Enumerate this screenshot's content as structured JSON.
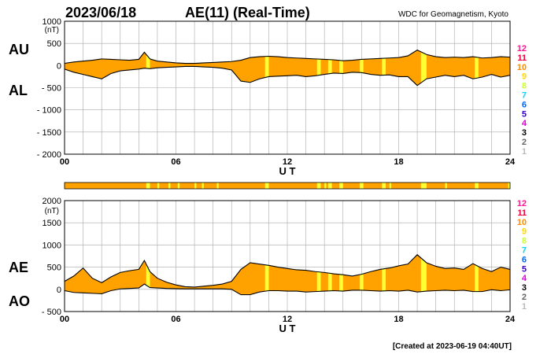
{
  "header": {
    "date": "2023/06/18",
    "title": "AE(11) (Real-Time)",
    "source": "WDC for Geomagnetism, Kyoto"
  },
  "footer": {
    "created": "[Created at 2023-06-19 04:40UT]"
  },
  "colors": {
    "fill": "#FFA200",
    "highlight": "#FFFF33",
    "grid": "#a8a8a8",
    "line": "#000000"
  },
  "station_scale": [
    {
      "label": "12",
      "color": "#ff1493"
    },
    {
      "label": "11",
      "color": "#e8003a"
    },
    {
      "label": "10",
      "color": "#ff8c00"
    },
    {
      "label": "9",
      "color": "#ffd700"
    },
    {
      "label": "8",
      "color": "#ccff33"
    },
    {
      "label": "7",
      "color": "#00d4ff"
    },
    {
      "label": "6",
      "color": "#0066ff"
    },
    {
      "label": "5",
      "color": "#3300cc"
    },
    {
      "label": "4",
      "color": "#dd00dd"
    },
    {
      "label": "3",
      "color": "#000000"
    },
    {
      "label": "2",
      "color": "#666666"
    },
    {
      "label": "1",
      "color": "#bbbbbb"
    }
  ],
  "chart_data": [
    {
      "type": "area",
      "upper_label": "AU",
      "lower_label": "AL",
      "xlabel": "U T",
      "xlim": [
        0,
        24
      ],
      "x_ticks": [
        "00",
        "06",
        "12",
        "18",
        "24"
      ],
      "ylim": [
        -2000,
        1000
      ],
      "y_ticks": [
        "1000",
        "500",
        "0",
        "- 500",
        "- 1000",
        "- 1500",
        "- 2000"
      ],
      "y_unit": "(nT)",
      "x": [
        0,
        0.5,
        1,
        1.5,
        2,
        2.5,
        3,
        3.5,
        4,
        4.3,
        4.6,
        5,
        5.5,
        6,
        6.5,
        7,
        7.5,
        8,
        8.5,
        9,
        9.5,
        10,
        10.5,
        11,
        11.5,
        12,
        12.5,
        13,
        13.5,
        14,
        14.5,
        15,
        15.5,
        16,
        16.5,
        17,
        17.5,
        18,
        18.5,
        19,
        19.5,
        20,
        20.5,
        21,
        21.5,
        22,
        22.5,
        23,
        23.5,
        24
      ],
      "series": [
        {
          "name": "AU",
          "values": [
            50,
            80,
            100,
            120,
            150,
            140,
            130,
            120,
            140,
            300,
            150,
            100,
            80,
            60,
            50,
            50,
            60,
            70,
            80,
            90,
            120,
            180,
            200,
            210,
            200,
            180,
            170,
            160,
            150,
            140,
            130,
            110,
            120,
            140,
            150,
            160,
            170,
            180,
            220,
            350,
            250,
            200,
            180,
            190,
            180,
            200,
            170,
            180,
            200,
            190
          ]
        },
        {
          "name": "AL",
          "values": [
            -80,
            -150,
            -200,
            -250,
            -300,
            -180,
            -120,
            -100,
            -80,
            -60,
            -70,
            -50,
            -40,
            -30,
            -20,
            -20,
            -30,
            -40,
            -60,
            -100,
            -350,
            -380,
            -300,
            -250,
            -240,
            -230,
            -220,
            -250,
            -230,
            -200,
            -170,
            -180,
            -150,
            -160,
            -200,
            -220,
            -210,
            -250,
            -250,
            -450,
            -300,
            -260,
            -220,
            -250,
            -220,
            -300,
            -260,
            -200,
            -260,
            -220
          ]
        }
      ],
      "station_count_bands": [
        [
          4.4,
          4.6
        ],
        [
          10.8,
          11.0
        ],
        [
          13.6,
          13.8
        ],
        [
          14.2,
          14.4
        ],
        [
          14.8,
          15.0
        ],
        [
          15.9,
          16.1
        ],
        [
          17.1,
          17.3
        ],
        [
          19.2,
          19.5
        ],
        [
          22.1,
          22.3
        ]
      ]
    },
    {
      "type": "area",
      "upper_label": "AE",
      "lower_label": "AO",
      "xlabel": "U T",
      "xlim": [
        0,
        24
      ],
      "x_ticks": [
        "00",
        "06",
        "12",
        "18",
        "24"
      ],
      "ylim": [
        -500,
        2000
      ],
      "y_ticks": [
        "2000",
        "1500",
        "1000",
        "500",
        "0",
        "- 500"
      ],
      "y_unit": "(nT)",
      "x": [
        0,
        0.5,
        1,
        1.5,
        2,
        2.5,
        3,
        3.5,
        4,
        4.3,
        4.6,
        5,
        5.5,
        6,
        6.5,
        7,
        7.5,
        8,
        8.5,
        9,
        9.5,
        10,
        10.5,
        11,
        11.5,
        12,
        12.5,
        13,
        13.5,
        14,
        14.5,
        15,
        15.5,
        16,
        16.5,
        17,
        17.5,
        18,
        18.5,
        19,
        19.5,
        20,
        20.5,
        21,
        21.5,
        22,
        22.5,
        23,
        23.5,
        24
      ],
      "series": [
        {
          "name": "AE",
          "values": [
            180,
            300,
            480,
            250,
            150,
            280,
            380,
            420,
            450,
            650,
            400,
            250,
            160,
            100,
            60,
            50,
            70,
            90,
            120,
            180,
            450,
            600,
            570,
            540,
            500,
            470,
            440,
            430,
            400,
            380,
            350,
            330,
            300,
            340,
            400,
            450,
            480,
            530,
            570,
            780,
            600,
            520,
            470,
            480,
            450,
            580,
            470,
            400,
            500,
            450
          ]
        },
        {
          "name": "AO",
          "values": [
            -30,
            -70,
            -80,
            -90,
            -100,
            -30,
            10,
            20,
            30,
            120,
            40,
            30,
            20,
            15,
            10,
            10,
            10,
            10,
            10,
            0,
            -120,
            -120,
            -60,
            -30,
            -30,
            -40,
            -40,
            -60,
            -50,
            -40,
            -30,
            -40,
            -20,
            -20,
            -30,
            -40,
            -30,
            -40,
            -20,
            -60,
            -40,
            -30,
            -20,
            -30,
            -20,
            -50,
            -50,
            -10,
            -30,
            -10
          ]
        }
      ],
      "station_count_bands": [
        [
          4.4,
          4.6
        ],
        [
          10.8,
          11.0
        ],
        [
          13.6,
          13.8
        ],
        [
          14.2,
          14.4
        ],
        [
          14.8,
          15.0
        ],
        [
          15.9,
          16.1
        ],
        [
          17.1,
          17.3
        ],
        [
          19.2,
          19.5
        ],
        [
          22.1,
          22.3
        ]
      ]
    }
  ],
  "station_bar": {
    "xlim": [
      0,
      24
    ],
    "bands": [
      [
        4.4,
        4.6
      ],
      [
        5.0,
        5.1
      ],
      [
        5.6,
        5.7
      ],
      [
        6.1,
        6.2
      ],
      [
        7.0,
        7.1
      ],
      [
        7.4,
        7.5
      ],
      [
        8.2,
        8.3
      ],
      [
        10.8,
        11.0
      ],
      [
        13.6,
        13.8
      ],
      [
        14.0,
        14.1
      ],
      [
        14.2,
        14.4
      ],
      [
        14.8,
        15.0
      ],
      [
        15.9,
        16.1
      ],
      [
        17.1,
        17.3
      ],
      [
        17.5,
        17.6
      ],
      [
        19.2,
        19.5
      ],
      [
        20.5,
        20.6
      ],
      [
        22.1,
        22.3
      ],
      [
        23.9,
        24.0
      ]
    ]
  }
}
